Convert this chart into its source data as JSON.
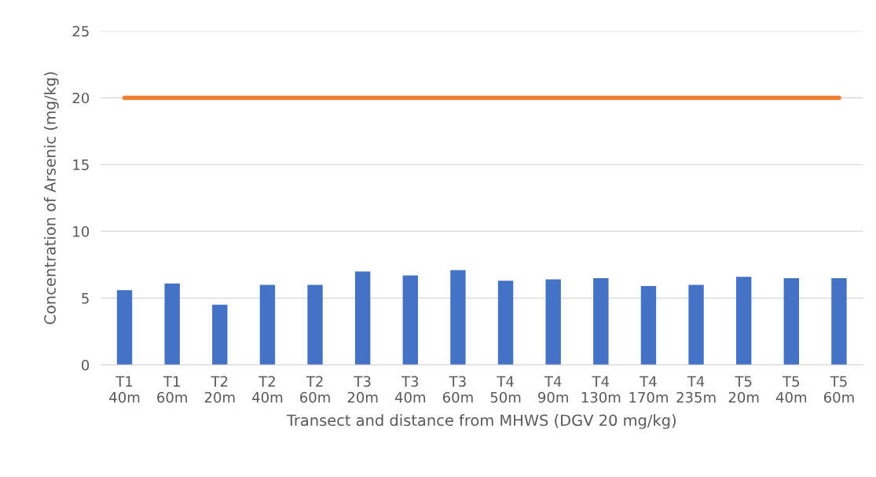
{
  "chart_data": {
    "type": "bar",
    "xlabel": "Transect and distance from MHWS (DGV 20 mg/kg)",
    "ylabel": "Concentration of Arsenic (mg/kg)",
    "categories": [
      "T1\n40m",
      "T1\n60m",
      "T2\n20m",
      "T2\n40m",
      "T2\n60m",
      "T3\n20m",
      "T3\n40m",
      "T3\n60m",
      "T4\n50m",
      "T4\n90m",
      "T4\n130m",
      "T4\n170m",
      "T4\n235m",
      "T5\n20m",
      "T5\n40m",
      "T5\n60m"
    ],
    "series": [
      {
        "color": "#4472c4",
        "values": [
          5.6,
          6.1,
          4.5,
          6.0,
          6.0,
          7.0,
          6.7,
          7.1,
          6.3,
          6.4,
          6.5,
          5.9,
          6.0,
          6.6,
          6.5,
          6.5
        ]
      },
      {
        "type": "line",
        "color": "#ed7d31",
        "values": [
          20,
          20,
          20,
          20,
          20,
          20,
          20,
          20,
          20,
          20,
          20,
          20,
          20,
          20,
          20,
          20
        ]
      }
    ],
    "ylim": [
      0,
      25
    ],
    "yticks": [
      0,
      5,
      10,
      15,
      20,
      25
    ],
    "grid": "y"
  }
}
